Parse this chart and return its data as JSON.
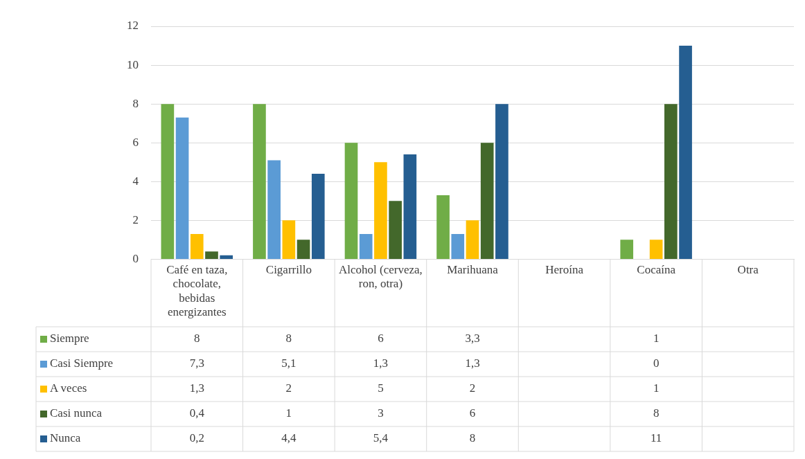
{
  "chart_data": {
    "type": "bar",
    "categories": [
      "Café en taza, chocolate, bebidas energizantes",
      "Cigarrillo",
      "Alcohol (cerveza, ron, otra)",
      "Marihuana",
      "Heroína",
      "Cocaína",
      "Otra"
    ],
    "series": [
      {
        "name": "Siempre",
        "color": "#70ad47",
        "values": [
          8,
          8,
          6,
          3.3,
          null,
          1,
          null
        ],
        "value_labels": [
          "8",
          "8",
          "6",
          "3,3",
          null,
          "1",
          null
        ]
      },
      {
        "name": "Casi Siempre",
        "color": "#5b9bd5",
        "values": [
          7.3,
          5.1,
          1.3,
          1.3,
          null,
          0,
          null
        ],
        "value_labels": [
          "7,3",
          "5,1",
          "1,3",
          "1,3",
          null,
          "0",
          null
        ]
      },
      {
        "name": "A veces",
        "color": "#ffc000",
        "values": [
          1.3,
          2,
          5,
          2,
          null,
          1,
          null
        ],
        "value_labels": [
          "1,3",
          "2",
          "5",
          "2",
          null,
          "1",
          null
        ]
      },
      {
        "name": "Casi nunca",
        "color": "#43682b",
        "values": [
          0.4,
          1,
          3,
          6,
          null,
          8,
          null
        ],
        "value_labels": [
          "0,4",
          "1",
          "3",
          "6",
          null,
          "8",
          null
        ]
      },
      {
        "name": "Nunca",
        "color": "#255e91",
        "values": [
          0.2,
          4.4,
          5.4,
          8,
          null,
          11,
          null
        ],
        "value_labels": [
          "0,2",
          "4,4",
          "5,4",
          "8",
          null,
          "11",
          null
        ]
      }
    ],
    "ylim": [
      0,
      12
    ],
    "yticks": [
      0,
      2,
      4,
      6,
      8,
      10,
      12
    ],
    "grid": "y",
    "legend": "bottom"
  }
}
